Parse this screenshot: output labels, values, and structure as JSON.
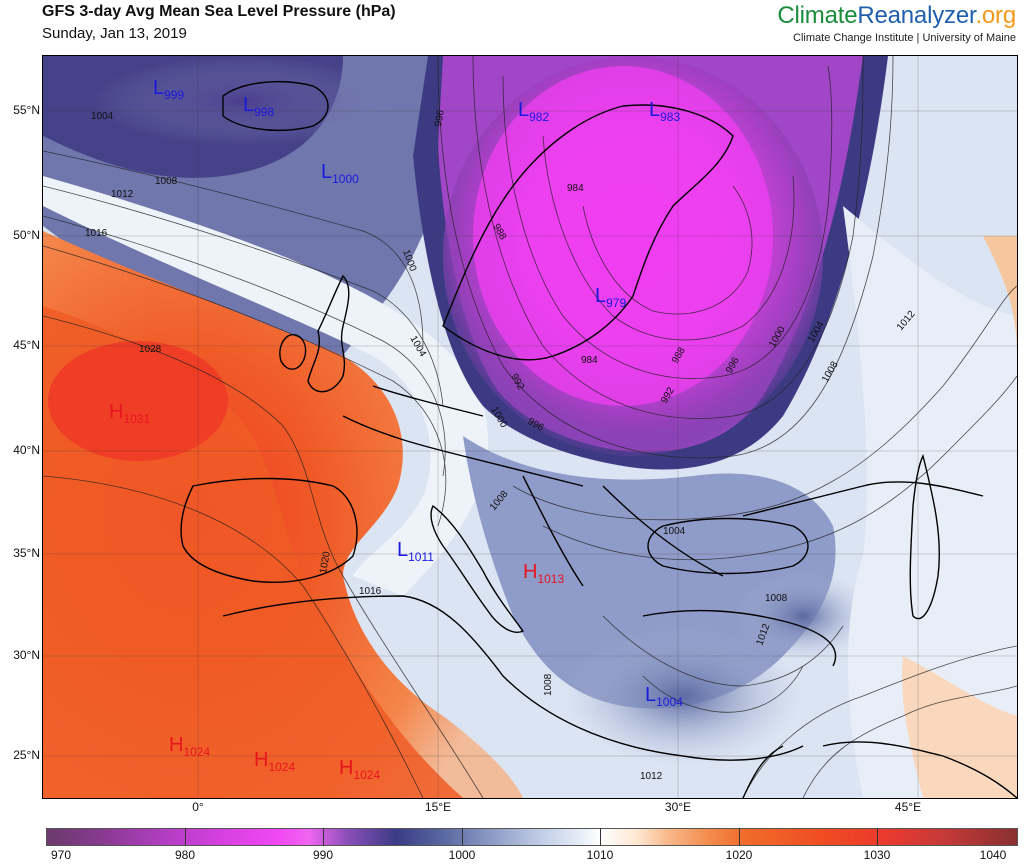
{
  "header": {
    "title": "GFS 3-day Avg Mean Sea Level Pressure (hPa)",
    "date": "Sunday, Jan 13, 2019"
  },
  "brand": {
    "part1": "Climate",
    "part2": "Reanalyzer",
    "part3": ".org",
    "tagline": "Climate Change Institute | University of Maine",
    "colors": {
      "part1": "#1a8c3c",
      "part2": "#1f5fae",
      "part3": "#f29a1c"
    }
  },
  "map": {
    "lat_labels": [
      "55°N",
      "50°N",
      "45°N",
      "40°N",
      "35°N",
      "30°N",
      "25°N"
    ],
    "lon_labels": [
      "0°",
      "15°E",
      "30°E",
      "45°E"
    ],
    "systems": [
      {
        "type": "L",
        "value": "999",
        "color": "#1a1adf"
      },
      {
        "type": "L",
        "value": "998",
        "color": "#1a1adf"
      },
      {
        "type": "L",
        "value": "1000",
        "color": "#1a1adf"
      },
      {
        "type": "L",
        "value": "982",
        "color": "#1a1adf"
      },
      {
        "type": "L",
        "value": "983",
        "color": "#1a1adf"
      },
      {
        "type": "L",
        "value": "979",
        "color": "#1a1adf"
      },
      {
        "type": "L",
        "value": "1011",
        "color": "#1a1adf"
      },
      {
        "type": "L",
        "value": "1004",
        "color": "#1a1adf"
      },
      {
        "type": "H",
        "value": "1031",
        "color": "#e8141e"
      },
      {
        "type": "H",
        "value": "1013",
        "color": "#e8141e"
      },
      {
        "type": "H",
        "value": "1024",
        "color": "#e8141e"
      },
      {
        "type": "H",
        "value": "1024",
        "color": "#e8141e"
      },
      {
        "type": "H",
        "value": "1024",
        "color": "#e8141e"
      }
    ],
    "contour_labels": [
      "1004",
      "1008",
      "1012",
      "1016",
      "1028",
      "1020",
      "1016",
      "996",
      "1000",
      "1004",
      "988",
      "984",
      "992",
      "996",
      "1000",
      "984",
      "988",
      "992",
      "996",
      "1000",
      "1004",
      "1008",
      "1012",
      "1008",
      "1004",
      "1008",
      "1012",
      "1012",
      "1008"
    ]
  },
  "colorbar": {
    "ticks": [
      "970",
      "980",
      "990",
      "1000",
      "1010",
      "1020",
      "1030",
      "1040"
    ],
    "low_color": "#6b3a6b",
    "mid_color": "#ffffff",
    "high_color": "#8a3030"
  }
}
